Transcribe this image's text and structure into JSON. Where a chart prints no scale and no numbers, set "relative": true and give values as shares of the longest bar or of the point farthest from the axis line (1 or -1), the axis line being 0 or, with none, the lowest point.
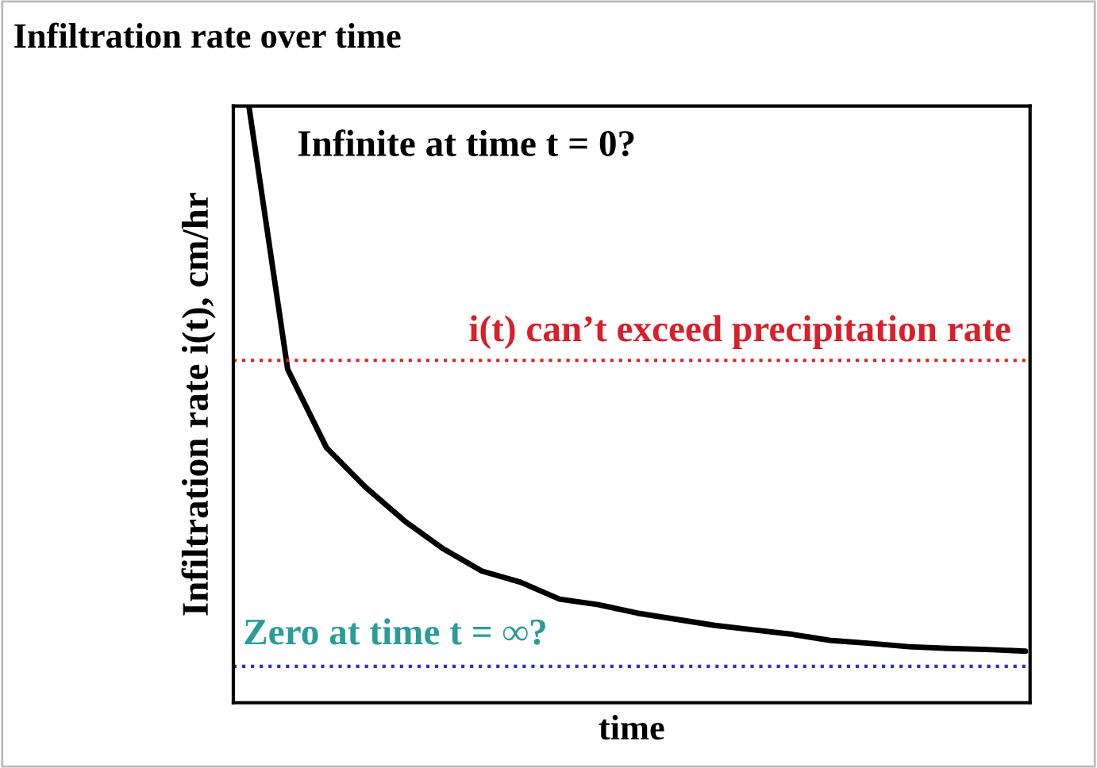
{
  "chart_data": {
    "type": "line",
    "title": "Infiltration rate over time",
    "xlabel": "time",
    "ylabel": "Infiltration rate i(t), cm/hr",
    "relative": true,
    "categories": [
      null,
      null,
      null,
      null,
      null,
      null,
      null,
      null,
      null,
      null,
      null,
      null,
      null,
      null,
      null,
      null,
      null,
      null,
      null,
      null,
      null
    ],
    "series": [
      {
        "color": "#000000",
        "values": [
          1.0,
          0.53,
          0.39,
          0.32,
          0.26,
          0.21,
          0.17,
          0.15,
          0.12,
          0.11,
          0.095,
          0.084,
          0.073,
          0.065,
          0.057,
          0.046,
          0.041,
          0.035,
          0.032,
          0.03,
          0.027
        ]
      }
    ],
    "ref_lines": [
      {
        "axis": "y",
        "value": 0.546,
        "label": "i(t) can’t exceed precipitation rate",
        "color": "#e02020",
        "line_style": "dotted"
      },
      {
        "axis": "y",
        "value": 0,
        "label": "Zero at time t = ∞?",
        "color": "#3030c8",
        "line_style": "dotted"
      }
    ],
    "annotations": [
      "Infinite at time t = 0?"
    ],
    "grid": false,
    "legend": false,
    "marker": "none",
    "line_style": "solid"
  }
}
